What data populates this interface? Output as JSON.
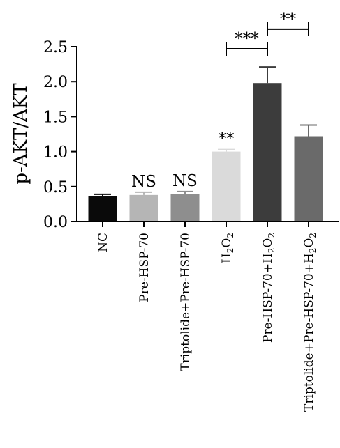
{
  "chart_data": {
    "type": "bar",
    "title": "",
    "xlabel": "",
    "ylabel": "p-AKT/AKT",
    "ylim": [
      0,
      2.5
    ],
    "yticks": [
      0.0,
      0.5,
      1.0,
      1.5,
      2.0,
      2.5
    ],
    "ytick_labels": [
      "0.0",
      "0.5",
      "1.0",
      "1.5",
      "2.0",
      "2.5"
    ],
    "grid": false,
    "categories": [
      {
        "name": "NC",
        "sub2": false
      },
      {
        "name": "Pre-HSP-70",
        "sub2": false
      },
      {
        "name": "Triptolide+Pre-HSP-70",
        "sub2": false
      },
      {
        "name": "H2O2",
        "sub2": true,
        "parts": [
          "H",
          "2",
          "O",
          "2"
        ]
      },
      {
        "name": "Pre-HSP-70+H2O2",
        "sub2": true,
        "parts": [
          "Pre-HSP-70+H",
          "2",
          "O",
          "2"
        ]
      },
      {
        "name": "Triptolide+Pre-HSP-70+H2O2",
        "sub2": true,
        "parts": [
          "Triptolide+Pre-HSP-70+H",
          "2",
          "O",
          "2"
        ]
      }
    ],
    "values": [
      0.36,
      0.38,
      0.39,
      1.0,
      1.98,
      1.22
    ],
    "errors": [
      0.03,
      0.04,
      0.04,
      0.03,
      0.23,
      0.16
    ],
    "colors": [
      "#0a0a0a",
      "#b5b5b5",
      "#8e8e8e",
      "#dadada",
      "#3c3c3c",
      "#6a6a6a"
    ],
    "bar_labels": [
      "",
      "NS",
      "NS",
      "**",
      "",
      ""
    ],
    "comparisons": [
      {
        "from": 3,
        "to": 4,
        "label": "***",
        "y": 2.47
      },
      {
        "from": 4,
        "to": 5,
        "label": "**",
        "y": 2.75
      }
    ]
  }
}
